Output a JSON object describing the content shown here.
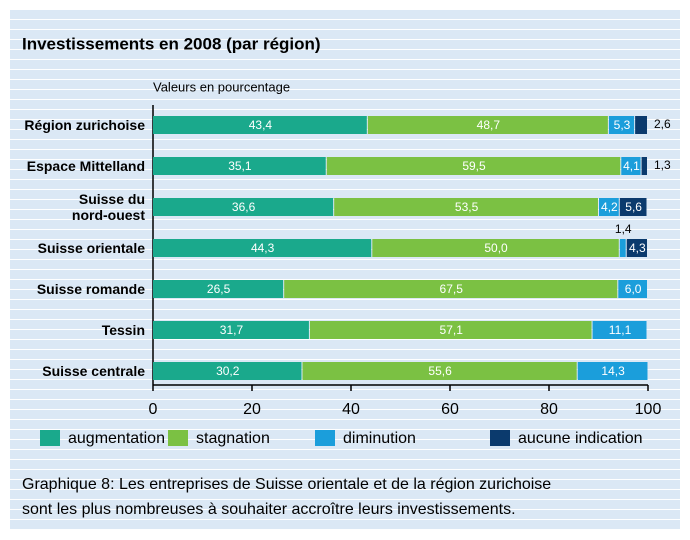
{
  "chart_data": {
    "type": "stacked-bar-horizontal",
    "title": "Investissements en 2008 (par région)",
    "subtitle": "Valeurs en pourcentage",
    "categories": [
      "Région zurichoise",
      "Espace Mittelland",
      "Suisse du\nnord-ouest",
      "Suisse orientale",
      "Suisse romande",
      "Tessin",
      "Suisse centrale"
    ],
    "series": [
      {
        "name": "augmentation",
        "color": "#1aa98c",
        "values": [
          43.4,
          35.1,
          36.6,
          44.3,
          26.5,
          31.7,
          30.2
        ],
        "value_labels": [
          "43,4",
          "35,1",
          "36,6",
          "44,3",
          "26,5",
          "31,7",
          "30,2"
        ]
      },
      {
        "name": "stagnation",
        "color": "#7bc143",
        "values": [
          48.7,
          59.5,
          53.5,
          50.0,
          67.5,
          57.1,
          55.6
        ],
        "value_labels": [
          "48,7",
          "59,5",
          "53,5",
          "50,0",
          "67,5",
          "57,1",
          "55,6"
        ]
      },
      {
        "name": "diminution",
        "color": "#1b9edb",
        "values": [
          5.3,
          4.1,
          4.2,
          1.4,
          6.0,
          11.1,
          14.3
        ],
        "value_labels": [
          "5,3",
          "4,1",
          "4,2",
          "1,4",
          "6,0",
          "11,1",
          "14,3"
        ]
      },
      {
        "name": "aucune indication",
        "color": "#0b3a6d",
        "values": [
          2.6,
          1.3,
          5.6,
          4.3,
          null,
          null,
          null
        ],
        "value_labels": [
          "2,6",
          "1,3",
          "5,6",
          "4,3",
          null,
          null,
          null
        ]
      }
    ],
    "xlim": [
      0,
      100
    ],
    "xticks": [
      0,
      20,
      40,
      60,
      80,
      100
    ],
    "caption": "Graphique 8: Les entreprises de Suisse orientale et de la région zurichoise\nsont les plus nombreuses à souhaiter accroître leurs investissements."
  }
}
